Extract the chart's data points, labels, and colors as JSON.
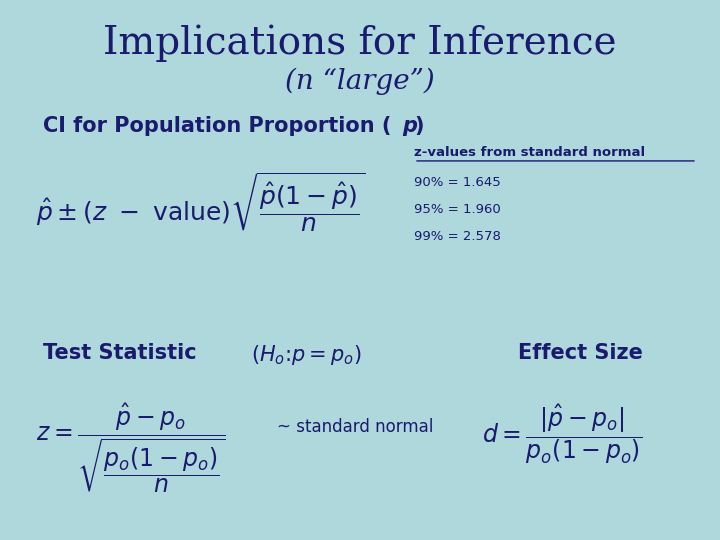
{
  "background_color": "#afd8dc",
  "title": "Implications for Inference",
  "subtitle": "(n “large”)",
  "title_color": "#1a1a6e",
  "title_fontsize": 28,
  "subtitle_fontsize": 20,
  "z_header": "z-values from standard normal",
  "z_values": [
    "90% = 1.645",
    "95% = 1.960",
    "99% = 2.578"
  ],
  "ts_normal_text": "~ standard normal",
  "es_heading": "Effect Size",
  "ts_heading": "Test Statistic  ",
  "ci_heading1": "CI for Population Proportion (",
  "ci_heading2": "p",
  "ci_heading3": ")",
  "dark_blue": "#1a1a6e"
}
